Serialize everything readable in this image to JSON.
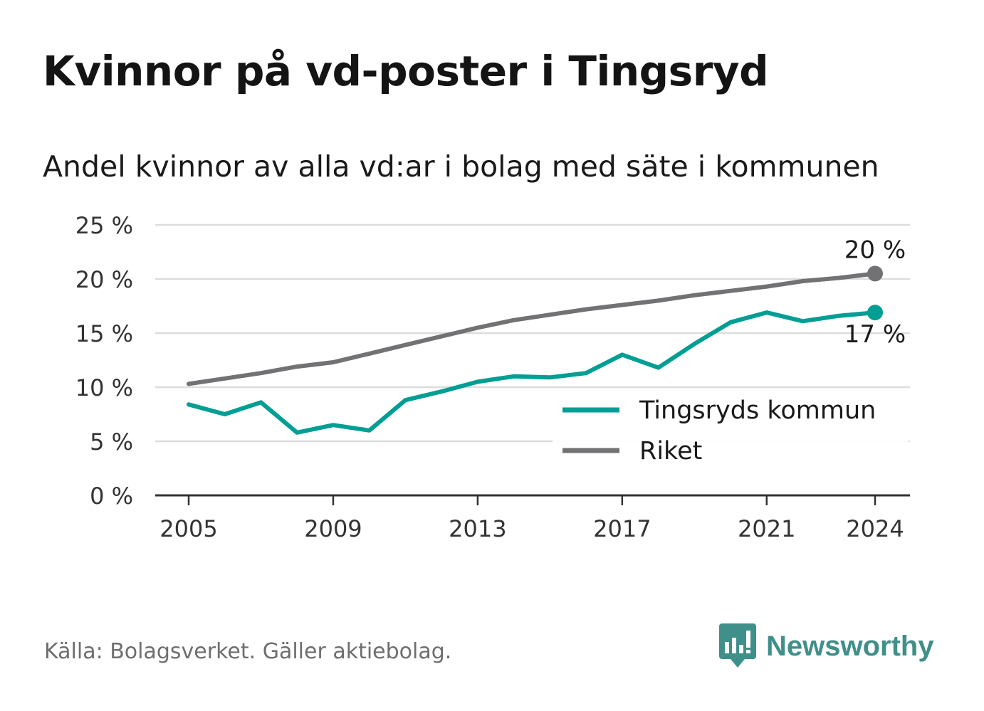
{
  "title": "Kvinnor på vd-poster i Tingsryd",
  "subtitle": "Andel kvinnor av alla vd:ar i bolag med säte i kommunen",
  "source": "Källa: Bolagsverket. Gäller aktiebolag.",
  "brand": {
    "name": "Newsworthy",
    "color": "#3f8f8a",
    "icon": "newsworthy-logo-icon"
  },
  "chart_data": {
    "type": "line",
    "x": [
      2005,
      2006,
      2007,
      2008,
      2009,
      2010,
      2011,
      2012,
      2013,
      2014,
      2015,
      2016,
      2017,
      2018,
      2019,
      2020,
      2021,
      2022,
      2023,
      2024
    ],
    "series": [
      {
        "name": "Tingsryds kommun",
        "color": "#009e93",
        "values": [
          8.4,
          7.5,
          8.6,
          5.8,
          6.5,
          6.0,
          8.8,
          9.6,
          10.5,
          11.0,
          10.9,
          11.3,
          13.0,
          11.8,
          14.0,
          16.0,
          16.9,
          16.1,
          16.6,
          16.9
        ],
        "end_label": "17 %"
      },
      {
        "name": "Riket",
        "color": "#727275",
        "values": [
          10.3,
          10.8,
          11.3,
          11.9,
          12.3,
          13.1,
          13.9,
          14.7,
          15.5,
          16.2,
          16.7,
          17.2,
          17.6,
          18.0,
          18.5,
          18.9,
          19.3,
          19.8,
          20.1,
          20.5
        ],
        "end_label": "20 %"
      }
    ],
    "ylim": [
      0,
      25
    ],
    "yticks": [
      0,
      5,
      10,
      15,
      20,
      25
    ],
    "ytick_labels": [
      "0 %",
      "5 %",
      "10 %",
      "15 %",
      "20 %",
      "25 %"
    ],
    "xticks": [
      2005,
      2009,
      2013,
      2017,
      2021,
      2024
    ],
    "xtick_labels": [
      "2005",
      "2009",
      "2013",
      "2017",
      "2021",
      "2024"
    ],
    "xlabel": "",
    "ylabel": "",
    "grid": true,
    "legend_position": "bottom-right"
  }
}
